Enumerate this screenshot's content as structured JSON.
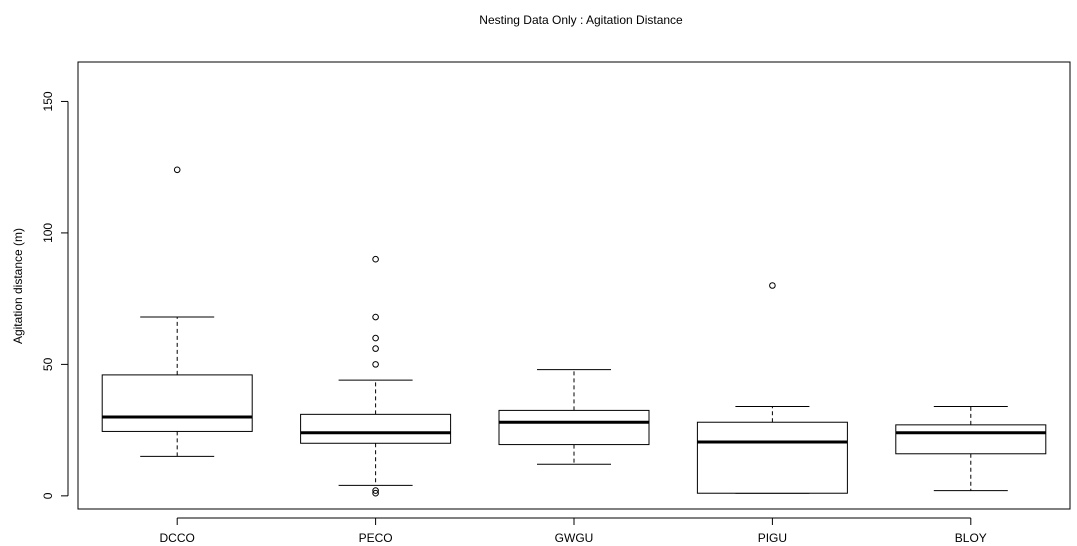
{
  "chart_data": {
    "type": "boxplot",
    "title": "Nesting Data Only : Agitation Distance",
    "xlabel": "",
    "ylabel": "Agitation distance (m)",
    "ylim": [
      -5,
      165
    ],
    "yticks": [
      0,
      50,
      100,
      150
    ],
    "ytick_labels": [
      "0",
      "50",
      "100",
      "150"
    ],
    "grid": false,
    "categories": [
      "DCCO",
      "PECO",
      "GWGU",
      "PIGU",
      "BLOY"
    ],
    "boxes": [
      {
        "category": "DCCO",
        "whisker_low": 15,
        "q1": 24.5,
        "median": 30,
        "q3": 46,
        "whisker_high": 68,
        "outliers": [
          124
        ]
      },
      {
        "category": "PECO",
        "whisker_low": 4,
        "q1": 20,
        "median": 24,
        "q3": 31,
        "whisker_high": 44,
        "outliers": [
          1,
          2,
          50,
          56,
          60,
          68,
          90
        ]
      },
      {
        "category": "GWGU",
        "whisker_low": 12,
        "q1": 19.5,
        "median": 28,
        "q3": 32.5,
        "whisker_high": 48,
        "outliers": []
      },
      {
        "category": "PIGU",
        "whisker_low": 1,
        "q1": 1,
        "median": 20.5,
        "q3": 28,
        "whisker_high": 34,
        "outliers": [
          80
        ]
      },
      {
        "category": "BLOY",
        "whisker_low": 2,
        "q1": 16,
        "median": 24,
        "q3": 27,
        "whisker_high": 34,
        "outliers": []
      }
    ]
  }
}
